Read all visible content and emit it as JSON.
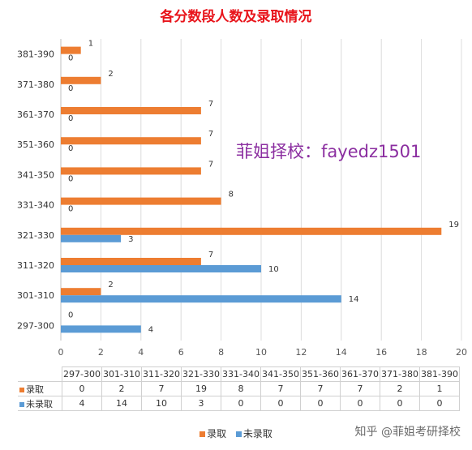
{
  "chart_data": {
    "type": "bar",
    "orientation": "horizontal",
    "title": "各分数段人数及录取情况",
    "categories": [
      "297-300",
      "301-310",
      "311-320",
      "321-330",
      "331-340",
      "341-350",
      "351-360",
      "361-370",
      "371-380",
      "381-390"
    ],
    "series": [
      {
        "name": "录取",
        "color": "#ed7d31",
        "values": [
          0,
          2,
          7,
          19,
          8,
          7,
          7,
          7,
          2,
          1
        ]
      },
      {
        "name": "未录取",
        "color": "#5b9bd5",
        "values": [
          4,
          14,
          10,
          3,
          0,
          0,
          0,
          0,
          0,
          0
        ]
      }
    ],
    "xlim": [
      0,
      20
    ],
    "xticks": [
      0,
      2,
      4,
      6,
      8,
      10,
      12,
      14,
      16,
      18,
      20
    ],
    "grid": true,
    "legend_position": "bottom",
    "data_table": true
  },
  "watermarks": {
    "main": "菲姐择校：fayedz1501",
    "corner": "知乎 @菲姐考研择校"
  }
}
